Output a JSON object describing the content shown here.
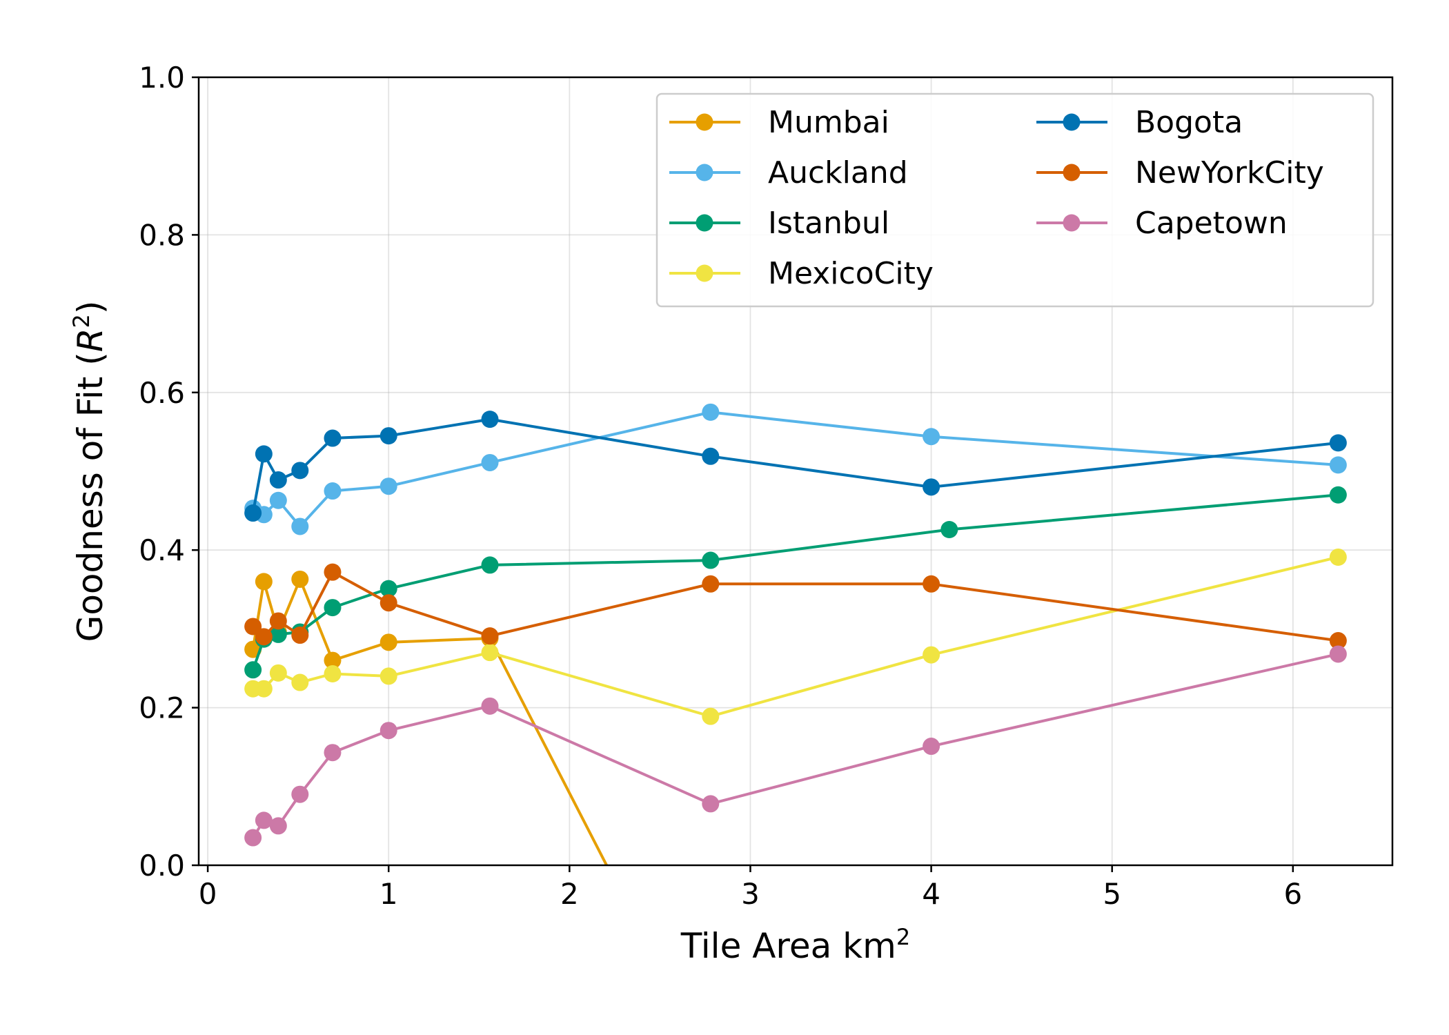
{
  "chart_data": {
    "type": "line",
    "title": "",
    "xlabel": "Tile Area km",
    "xlabel_sup": "2",
    "ylabel_main": "Goodness of Fit (",
    "ylabel_var": "R",
    "ylabel_sup": "2",
    "ylabel_close": ")",
    "xlim": [
      -0.05,
      6.55
    ],
    "ylim": [
      0.0,
      1.0
    ],
    "xticks": [
      0,
      1,
      2,
      3,
      4,
      5,
      6
    ],
    "xtick_labels": [
      "0",
      "1",
      "2",
      "3",
      "4",
      "5",
      "6"
    ],
    "yticks": [
      0.0,
      0.2,
      0.4,
      0.6,
      0.8,
      1.0
    ],
    "ytick_labels": [
      "0.0",
      "0.2",
      "0.4",
      "0.6",
      "0.8",
      "1.0"
    ],
    "grid": true,
    "legend_position": "top-right",
    "legend_columns": 2,
    "series": [
      {
        "name": "Mumbai",
        "color": "#E69F00",
        "points": [
          [
            0.25,
            0.274
          ],
          [
            0.31,
            0.36
          ],
          [
            0.39,
            0.296
          ],
          [
            0.51,
            0.363
          ],
          [
            0.69,
            0.26
          ],
          [
            1.0,
            0.283
          ],
          [
            1.56,
            0.288
          ],
          [
            2.25,
            -0.02
          ]
        ]
      },
      {
        "name": "Auckland",
        "color": "#56B4E9",
        "points": [
          [
            0.25,
            0.453
          ],
          [
            0.31,
            0.445
          ],
          [
            0.39,
            0.463
          ],
          [
            0.51,
            0.43
          ],
          [
            0.69,
            0.475
          ],
          [
            1.0,
            0.481
          ],
          [
            1.56,
            0.511
          ],
          [
            2.78,
            0.575
          ],
          [
            4.0,
            0.544
          ],
          [
            6.25,
            0.508
          ]
        ]
      },
      {
        "name": "Istanbul",
        "color": "#009E73",
        "points": [
          [
            0.25,
            0.248
          ],
          [
            0.31,
            0.287
          ],
          [
            0.39,
            0.293
          ],
          [
            0.51,
            0.296
          ],
          [
            0.69,
            0.327
          ],
          [
            1.0,
            0.351
          ],
          [
            1.56,
            0.381
          ],
          [
            2.78,
            0.387
          ],
          [
            4.1,
            0.426
          ],
          [
            6.25,
            0.47
          ]
        ]
      },
      {
        "name": "MexicoCity",
        "color": "#F0E442",
        "points": [
          [
            0.25,
            0.224
          ],
          [
            0.31,
            0.224
          ],
          [
            0.39,
            0.244
          ],
          [
            0.51,
            0.232
          ],
          [
            0.69,
            0.243
          ],
          [
            1.0,
            0.24
          ],
          [
            1.56,
            0.27
          ],
          [
            2.78,
            0.189
          ],
          [
            4.0,
            0.267
          ],
          [
            6.25,
            0.391
          ]
        ]
      },
      {
        "name": "Bogota",
        "color": "#0072B2",
        "points": [
          [
            0.25,
            0.447
          ],
          [
            0.31,
            0.522
          ],
          [
            0.39,
            0.489
          ],
          [
            0.51,
            0.501
          ],
          [
            0.69,
            0.542
          ],
          [
            1.0,
            0.545
          ],
          [
            1.56,
            0.566
          ],
          [
            2.78,
            0.519
          ],
          [
            4.0,
            0.48
          ],
          [
            6.25,
            0.536
          ]
        ]
      },
      {
        "name": "NewYorkCity",
        "color": "#D55E00",
        "points": [
          [
            0.25,
            0.303
          ],
          [
            0.31,
            0.29
          ],
          [
            0.39,
            0.31
          ],
          [
            0.51,
            0.292
          ],
          [
            0.69,
            0.372
          ],
          [
            1.0,
            0.333
          ],
          [
            1.56,
            0.291
          ],
          [
            2.78,
            0.357
          ],
          [
            4.0,
            0.357
          ],
          [
            6.25,
            0.285
          ]
        ]
      },
      {
        "name": "Capetown",
        "color": "#CC79A7",
        "points": [
          [
            0.25,
            0.035
          ],
          [
            0.31,
            0.057
          ],
          [
            0.39,
            0.05
          ],
          [
            0.51,
            0.09
          ],
          [
            0.69,
            0.143
          ],
          [
            1.0,
            0.171
          ],
          [
            1.56,
            0.202
          ],
          [
            2.78,
            0.078
          ],
          [
            4.0,
            0.151
          ],
          [
            6.25,
            0.268
          ]
        ]
      }
    ]
  }
}
